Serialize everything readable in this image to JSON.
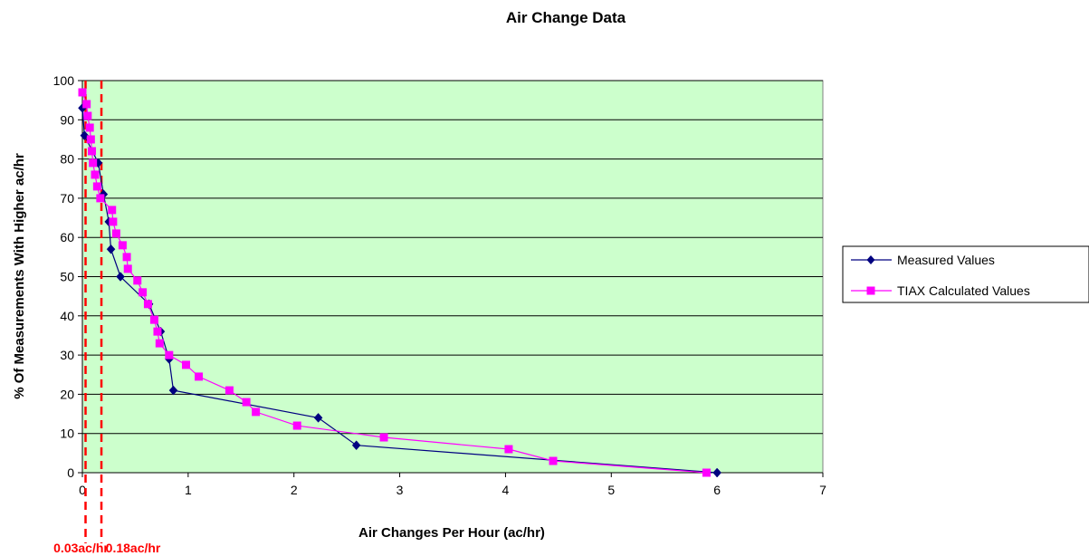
{
  "chart_data": {
    "type": "line",
    "title": "Air Change Data",
    "xlabel": "Air Changes Per Hour (ac/hr)",
    "ylabel": "% Of Measurements With Higher ac/hr",
    "xlim": [
      0,
      7
    ],
    "ylim": [
      0,
      100
    ],
    "x_ticks": [
      0,
      1,
      2,
      3,
      4,
      5,
      6,
      7
    ],
    "y_ticks": [
      0,
      10,
      20,
      30,
      40,
      50,
      60,
      70,
      80,
      90,
      100
    ],
    "grid": "horizontal",
    "plot_background": "#ccffcc",
    "legend_position": "right",
    "series": [
      {
        "name": "Measured Values",
        "color": "#000080",
        "marker": "diamond",
        "x": [
          0.0,
          0.02,
          0.15,
          0.2,
          0.25,
          0.27,
          0.36,
          0.63,
          0.74,
          0.82,
          0.86,
          2.23,
          2.59,
          6.0
        ],
        "y": [
          93,
          86,
          79,
          71,
          64,
          57,
          50,
          43,
          36,
          29,
          21,
          14,
          7,
          0
        ]
      },
      {
        "name": "TIAX Calculated Values",
        "color": "#ff00ff",
        "marker": "square",
        "x": [
          0.0,
          0.04,
          0.05,
          0.07,
          0.08,
          0.09,
          0.1,
          0.12,
          0.14,
          0.17,
          0.28,
          0.29,
          0.32,
          0.38,
          0.42,
          0.43,
          0.52,
          0.57,
          0.62,
          0.68,
          0.71,
          0.73,
          0.82,
          0.98,
          1.1,
          1.39,
          1.55,
          1.64,
          2.03,
          2.85,
          4.03,
          4.45,
          5.9
        ],
        "y": [
          97,
          94,
          91,
          88,
          85,
          82,
          79,
          76,
          73,
          70,
          67,
          64,
          61,
          58,
          55,
          52,
          49,
          46,
          43,
          39,
          36,
          33,
          30,
          27.5,
          24.5,
          21,
          18,
          15.5,
          12,
          9,
          6,
          3,
          0
        ]
      }
    ],
    "reference_lines": [
      {
        "x": 0.03,
        "label": "0.03ac/hr",
        "color": "#ff0000"
      },
      {
        "x": 0.18,
        "label": "0.18ac/hr",
        "color": "#ff0000"
      }
    ]
  }
}
